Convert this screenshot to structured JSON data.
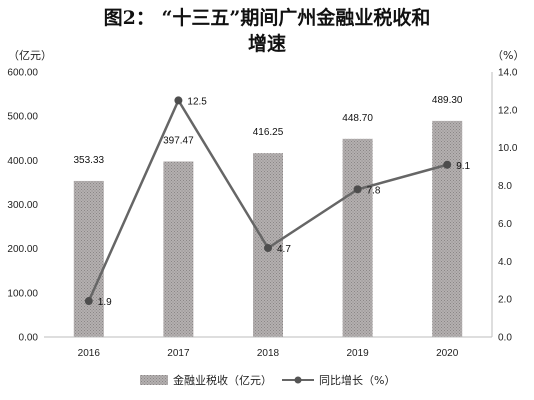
{
  "title": {
    "line1": "图2：  “十三五”期间广州金融业税收和",
    "line2": "增速"
  },
  "chart_data": {
    "type": "bar",
    "categories": [
      "2016",
      "2017",
      "2018",
      "2019",
      "2020"
    ],
    "series": [
      {
        "name": "金融业税收（亿元）",
        "type": "bar",
        "axis": "left",
        "values": [
          353.33,
          397.47,
          416.25,
          448.7,
          489.3
        ],
        "labels": [
          "353.33",
          "397.47",
          "416.25",
          "448.70",
          "489.30"
        ],
        "color": "#a8a4a4"
      },
      {
        "name": "同比增长（%）",
        "type": "line",
        "axis": "right",
        "values": [
          1.9,
          12.5,
          4.7,
          7.8,
          9.1
        ],
        "labels": [
          "1.9",
          "12.5",
          "4.7",
          "7.8",
          "9.1"
        ],
        "color": "#666666"
      }
    ],
    "y_left": {
      "unit": "（亿元）",
      "ylim": [
        0,
        600
      ],
      "ticks": [
        "0.00",
        "100.00",
        "200.00",
        "300.00",
        "400.00",
        "500.00",
        "600.00"
      ]
    },
    "y_right": {
      "unit": "（%）",
      "ylim": [
        0,
        14
      ],
      "ticks": [
        "0.0",
        "2.0",
        "4.0",
        "6.0",
        "8.0",
        "10.0",
        "12.0",
        "14.0"
      ]
    },
    "grid": false,
    "legend": "bottom"
  }
}
